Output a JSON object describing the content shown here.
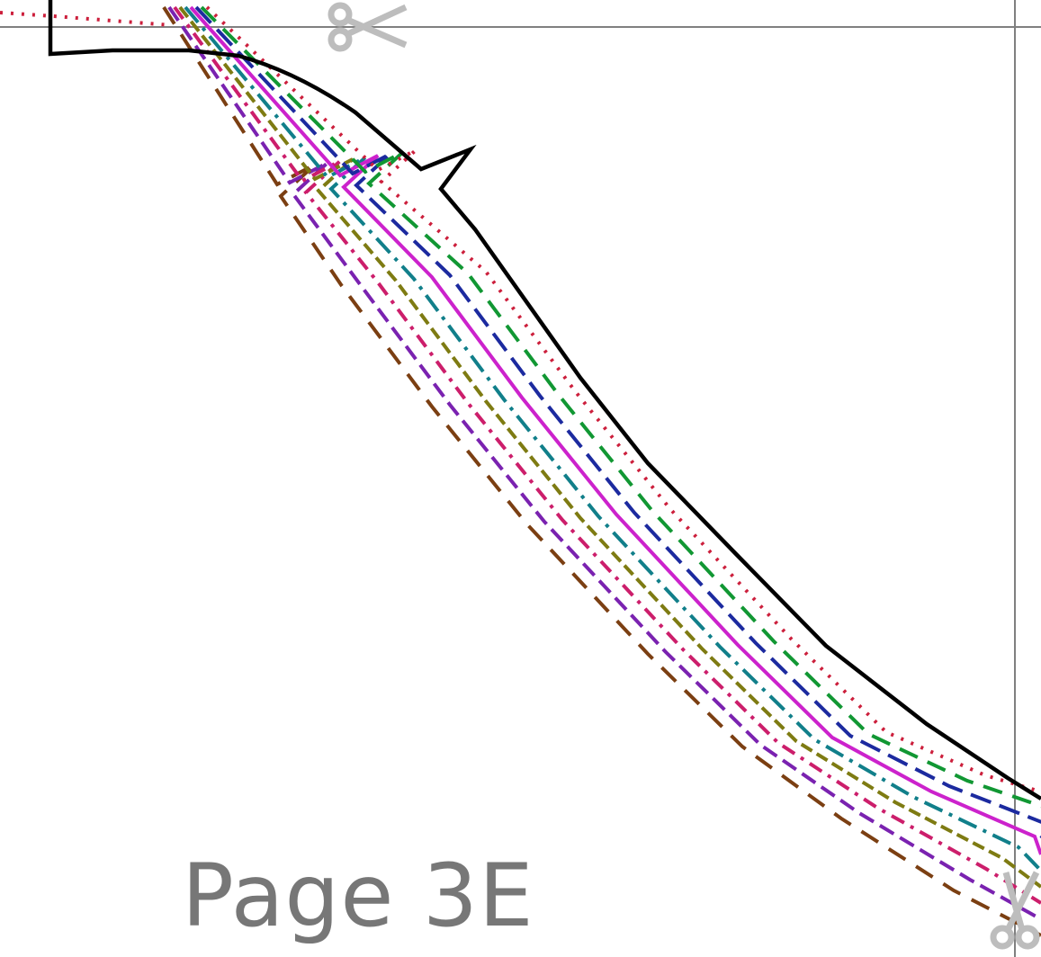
{
  "page": {
    "label": "Page 3E"
  },
  "colors": {
    "outline": "#000000",
    "guide": "#808080",
    "scissors": "#bdbdbd",
    "label": "#777777",
    "sizes": [
      "#7b3f12",
      "#7a22b0",
      "#cc1e6b",
      "#7e7b12",
      "#117f8a",
      "#cc22cc",
      "#1c2a9f",
      "#119733",
      "#cc1f3c"
    ]
  },
  "icons": {
    "cut_marks": [
      "scissors-icon",
      "scissors-icon"
    ]
  }
}
